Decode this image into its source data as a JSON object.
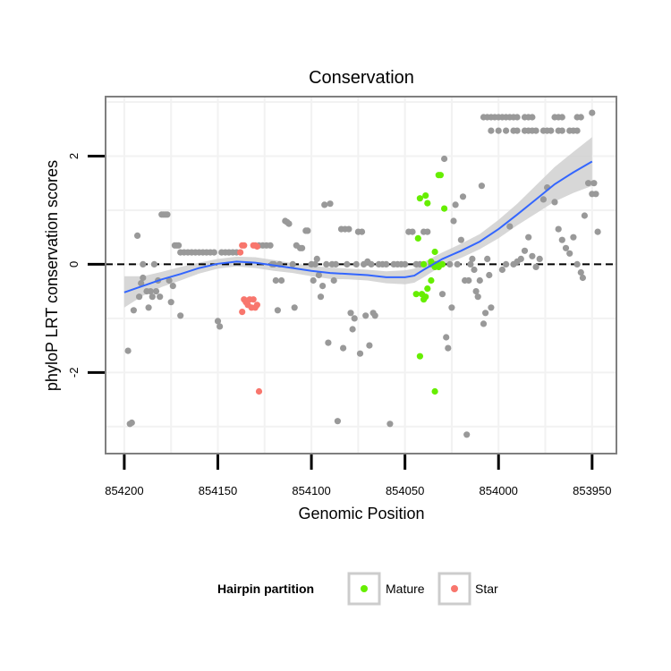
{
  "chart_data": {
    "type": "scatter",
    "title": "Conservation",
    "xlabel": "Genomic Position",
    "ylabel": "phyloP LRT conservation scores",
    "x_reversed": true,
    "xlim": [
      854210,
      853937
    ],
    "ylim": [
      -3.5,
      3.1
    ],
    "x_ticks": [
      854200,
      854150,
      854100,
      854050,
      854000,
      853950
    ],
    "x_tick_labels": [
      "854200",
      "854150",
      "854100",
      "854050",
      "854000",
      "853950"
    ],
    "y_ticks": [
      -2,
      0,
      2
    ],
    "y_tick_labels": [
      "-2",
      "0",
      "2"
    ],
    "reference_line": {
      "y": 0,
      "style": "dashed"
    },
    "grid": true,
    "colors": {
      "background": "#ffffff",
      "gridline": "#f2f2f2",
      "border": "#7f7f7f",
      "other": "#999999",
      "mature": "#66ee00",
      "star": "#f8766d",
      "smooth": "#3366ff",
      "ribbon": "#d0d0d0"
    },
    "legend": {
      "position": "bottom",
      "title": "Hairpin partition",
      "entries": [
        {
          "key": "mature",
          "label": "Mature"
        },
        {
          "key": "star",
          "label": "Star"
        }
      ]
    },
    "series": [
      {
        "name": "Other",
        "color_key": "other",
        "points": [
          [
            854198,
            -1.6
          ],
          [
            854197,
            -2.95
          ],
          [
            854196,
            -2.93
          ],
          [
            854195,
            -0.85
          ],
          [
            854193,
            0.53
          ],
          [
            854192,
            -0.6
          ],
          [
            854191,
            -0.35
          ],
          [
            854190,
            -0.25
          ],
          [
            854190,
            0.0
          ],
          [
            854188,
            -0.5
          ],
          [
            854187,
            -0.8
          ],
          [
            854186,
            -0.5
          ],
          [
            854185,
            -0.6
          ],
          [
            854184,
            0.0
          ],
          [
            854183,
            -0.5
          ],
          [
            854182,
            -0.3
          ],
          [
            854181,
            -0.6
          ],
          [
            854180,
            0.92
          ],
          [
            854179,
            0.92
          ],
          [
            854178,
            0.92
          ],
          [
            854177,
            0.92
          ],
          [
            854176,
            -0.3
          ],
          [
            854175,
            -0.7
          ],
          [
            854174,
            -0.4
          ],
          [
            854173,
            0.35
          ],
          [
            854172,
            0.35
          ],
          [
            854171,
            0.35
          ],
          [
            854170,
            -0.95
          ],
          [
            854170,
            0.22
          ],
          [
            854168,
            0.22
          ],
          [
            854166,
            0.22
          ],
          [
            854164,
            0.22
          ],
          [
            854162,
            0.22
          ],
          [
            854160,
            0.22
          ],
          [
            854158,
            0.22
          ],
          [
            854156,
            0.22
          ],
          [
            854154,
            0.22
          ],
          [
            854152,
            0.22
          ],
          [
            854150,
            -1.05
          ],
          [
            854149,
            -1.15
          ],
          [
            854148,
            0.22
          ],
          [
            854146,
            0.22
          ],
          [
            854144,
            0.22
          ],
          [
            854142,
            0.22
          ],
          [
            854140,
            0.22
          ],
          [
            854128,
            0.35
          ],
          [
            854126,
            0.35
          ],
          [
            854124,
            0.35
          ],
          [
            854122,
            0.35
          ],
          [
            854121,
            0.0
          ],
          [
            854120,
            0.0
          ],
          [
            854119,
            -0.3
          ],
          [
            854118,
            -0.85
          ],
          [
            854117,
            0.0
          ],
          [
            854116,
            -0.3
          ],
          [
            854114,
            0.8
          ],
          [
            854113,
            0.78
          ],
          [
            854112,
            0.75
          ],
          [
            854110,
            0.0
          ],
          [
            854109,
            -0.8
          ],
          [
            854108,
            0.35
          ],
          [
            854106,
            0.3
          ],
          [
            854105,
            0.3
          ],
          [
            854103,
            0.62
          ],
          [
            854102,
            0.62
          ],
          [
            854100,
            0.0
          ],
          [
            854099,
            -0.3
          ],
          [
            854098,
            0.0
          ],
          [
            854097,
            0.1
          ],
          [
            854096,
            -0.2
          ],
          [
            854095,
            -0.6
          ],
          [
            854094,
            -0.4
          ],
          [
            854093,
            1.1
          ],
          [
            854092,
            0.0
          ],
          [
            854091,
            -1.45
          ],
          [
            854090,
            1.12
          ],
          [
            854089,
            0.0
          ],
          [
            854088,
            -0.3
          ],
          [
            854087,
            0.0
          ],
          [
            854086,
            -2.9
          ],
          [
            854084,
            0.65
          ],
          [
            854083,
            -1.55
          ],
          [
            854082,
            0.65
          ],
          [
            854081,
            0.0
          ],
          [
            854080,
            0.65
          ],
          [
            854079,
            -0.9
          ],
          [
            854078,
            -1.2
          ],
          [
            854077,
            -1.0
          ],
          [
            854076,
            0.0
          ],
          [
            854075,
            0.6
          ],
          [
            854074,
            -1.65
          ],
          [
            854073,
            0.6
          ],
          [
            854072,
            0.0
          ],
          [
            854071,
            -0.95
          ],
          [
            854070,
            0.05
          ],
          [
            854069,
            -1.5
          ],
          [
            854068,
            0.0
          ],
          [
            854067,
            -0.9
          ],
          [
            854066,
            -0.95
          ],
          [
            854064,
            0.0
          ],
          [
            854062,
            0.0
          ],
          [
            854060,
            0.0
          ],
          [
            854058,
            -2.95
          ],
          [
            854056,
            0.0
          ],
          [
            854054,
            0.0
          ],
          [
            854052,
            0.0
          ],
          [
            854050,
            0.0
          ],
          [
            854048,
            0.6
          ],
          [
            854046,
            0.6
          ],
          [
            854044,
            0.0
          ],
          [
            854042,
            0.0
          ],
          [
            854040,
            0.6
          ],
          [
            854038,
            0.6
          ],
          [
            854036,
            0.0
          ],
          [
            854034,
            0.0
          ],
          [
            854032,
            0.0
          ],
          [
            854031,
            0.0
          ],
          [
            854030,
            -0.55
          ],
          [
            854029,
            1.95
          ],
          [
            854028,
            -1.35
          ],
          [
            854027,
            -1.55
          ],
          [
            854026,
            0.0
          ],
          [
            854025,
            -0.8
          ],
          [
            854024,
            0.8
          ],
          [
            854023,
            1.1
          ],
          [
            854022,
            0.0
          ],
          [
            854020,
            0.45
          ],
          [
            854019,
            1.25
          ],
          [
            854018,
            -0.3
          ],
          [
            854017,
            -3.15
          ],
          [
            854016,
            -0.3
          ],
          [
            854015,
            0.0
          ],
          [
            854014,
            0.1
          ],
          [
            854013,
            -0.1
          ],
          [
            854012,
            -0.5
          ],
          [
            854011,
            -0.6
          ],
          [
            854010,
            -0.3
          ],
          [
            854009,
            1.45
          ],
          [
            854008,
            -1.1
          ],
          [
            854007,
            -0.9
          ],
          [
            854006,
            0.1
          ],
          [
            854005,
            -0.2
          ],
          [
            854004,
            -0.8
          ],
          [
            854008,
            2.72
          ],
          [
            854006,
            2.72
          ],
          [
            854004,
            2.72
          ],
          [
            854002,
            2.72
          ],
          [
            854000,
            2.72
          ],
          [
            853998,
            2.72
          ],
          [
            853996,
            2.72
          ],
          [
            853994,
            2.72
          ],
          [
            853992,
            2.72
          ],
          [
            853990,
            2.72
          ],
          [
            853986,
            2.72
          ],
          [
            853984,
            2.72
          ],
          [
            853982,
            2.72
          ],
          [
            853970,
            2.72
          ],
          [
            853968,
            2.72
          ],
          [
            853966,
            2.72
          ],
          [
            853958,
            2.72
          ],
          [
            853956,
            2.72
          ],
          [
            854004,
            2.47
          ],
          [
            854000,
            2.47
          ],
          [
            853996,
            2.47
          ],
          [
            853992,
            2.47
          ],
          [
            853990,
            2.47
          ],
          [
            853986,
            2.47
          ],
          [
            853984,
            2.47
          ],
          [
            853982,
            2.47
          ],
          [
            853980,
            2.47
          ],
          [
            853976,
            2.47
          ],
          [
            853974,
            2.47
          ],
          [
            853972,
            2.47
          ],
          [
            853968,
            2.47
          ],
          [
            853966,
            2.47
          ],
          [
            853962,
            2.47
          ],
          [
            853960,
            2.47
          ],
          [
            853958,
            2.47
          ],
          [
            853950,
            2.8
          ],
          [
            853949,
            1.5
          ],
          [
            853948,
            1.3
          ],
          [
            853947,
            0.6
          ],
          [
            853950,
            1.3
          ],
          [
            853952,
            1.5
          ],
          [
            853954,
            0.9
          ],
          [
            853955,
            -0.25
          ],
          [
            853956,
            -0.15
          ],
          [
            853958,
            0.0
          ],
          [
            853960,
            0.5
          ],
          [
            853962,
            0.2
          ],
          [
            853964,
            0.3
          ],
          [
            853966,
            0.45
          ],
          [
            853968,
            0.65
          ],
          [
            853970,
            1.15
          ],
          [
            853974,
            1.42
          ],
          [
            853976,
            1.2
          ],
          [
            853978,
            0.1
          ],
          [
            853980,
            -0.05
          ],
          [
            853982,
            0.15
          ],
          [
            853984,
            0.5
          ],
          [
            853986,
            0.25
          ],
          [
            853988,
            0.1
          ],
          [
            853990,
            0.05
          ],
          [
            853992,
            0.0
          ],
          [
            853994,
            0.7
          ],
          [
            853996,
            0.0
          ],
          [
            853998,
            -0.1
          ]
        ]
      },
      {
        "name": "Mature",
        "color_key": "mature",
        "points": [
          [
            854042,
            1.22
          ],
          [
            854039,
            1.27
          ],
          [
            854038,
            1.13
          ],
          [
            854034,
            0.23
          ],
          [
            854032,
            1.65
          ],
          [
            854031,
            1.65
          ],
          [
            854029,
            1.03
          ],
          [
            854040,
            0.0
          ],
          [
            854036,
            0.05
          ],
          [
            854043,
            0.48
          ],
          [
            854041,
            -0.55
          ],
          [
            854039,
            -0.6
          ],
          [
            854038,
            -0.45
          ],
          [
            854036,
            -0.3
          ],
          [
            854034,
            -0.05
          ],
          [
            854033,
            0.0
          ],
          [
            854042,
            -1.7
          ],
          [
            854034,
            -2.35
          ],
          [
            854030,
            0.0
          ],
          [
            854032,
            -0.05
          ],
          [
            854044,
            -0.55
          ],
          [
            854040,
            -0.65
          ]
        ]
      },
      {
        "name": "Star",
        "color_key": "star",
        "points": [
          [
            854138,
            0.22
          ],
          [
            854137,
            0.35
          ],
          [
            854136,
            0.35
          ],
          [
            854131,
            0.35
          ],
          [
            854130,
            0.35
          ],
          [
            854129,
            0.33
          ],
          [
            854137,
            -0.88
          ],
          [
            854136,
            -0.65
          ],
          [
            854135,
            -0.7
          ],
          [
            854134,
            -0.75
          ],
          [
            854133,
            -0.65
          ],
          [
            854132,
            -0.8
          ],
          [
            854131,
            -0.65
          ],
          [
            854130,
            -0.8
          ],
          [
            854129,
            -0.75
          ],
          [
            854128,
            -2.35
          ]
        ]
      }
    ],
    "smooth": {
      "name": "loess",
      "x": [
        854200,
        854190,
        854180,
        854170,
        854160,
        854150,
        854140,
        854130,
        854120,
        854110,
        854100,
        854090,
        854080,
        854070,
        854060,
        854050,
        854045,
        854040,
        854030,
        854020,
        854010,
        854000,
        853990,
        853980,
        853970,
        853960,
        853950
      ],
      "y": [
        -0.52,
        -0.4,
        -0.28,
        -0.18,
        -0.07,
        0.01,
        0.05,
        0.03,
        -0.02,
        -0.07,
        -0.12,
        -0.16,
        -0.18,
        -0.2,
        -0.24,
        -0.24,
        -0.21,
        -0.1,
        0.1,
        0.25,
        0.42,
        0.65,
        0.92,
        1.2,
        1.48,
        1.7,
        1.9
      ],
      "ymin": [
        -0.8,
        -0.58,
        -0.42,
        -0.3,
        -0.17,
        -0.08,
        -0.04,
        -0.07,
        -0.12,
        -0.16,
        -0.22,
        -0.27,
        -0.28,
        -0.3,
        -0.35,
        -0.37,
        -0.34,
        -0.24,
        -0.02,
        0.12,
        0.28,
        0.48,
        0.72,
        0.94,
        1.16,
        1.32,
        1.45
      ],
      "ymax": [
        -0.22,
        -0.22,
        -0.14,
        -0.05,
        0.03,
        0.1,
        0.14,
        0.13,
        0.08,
        0.02,
        -0.03,
        -0.06,
        -0.08,
        -0.1,
        -0.13,
        -0.11,
        -0.08,
        0.04,
        0.22,
        0.38,
        0.56,
        0.82,
        1.12,
        1.46,
        1.8,
        2.08,
        2.35
      ]
    }
  }
}
